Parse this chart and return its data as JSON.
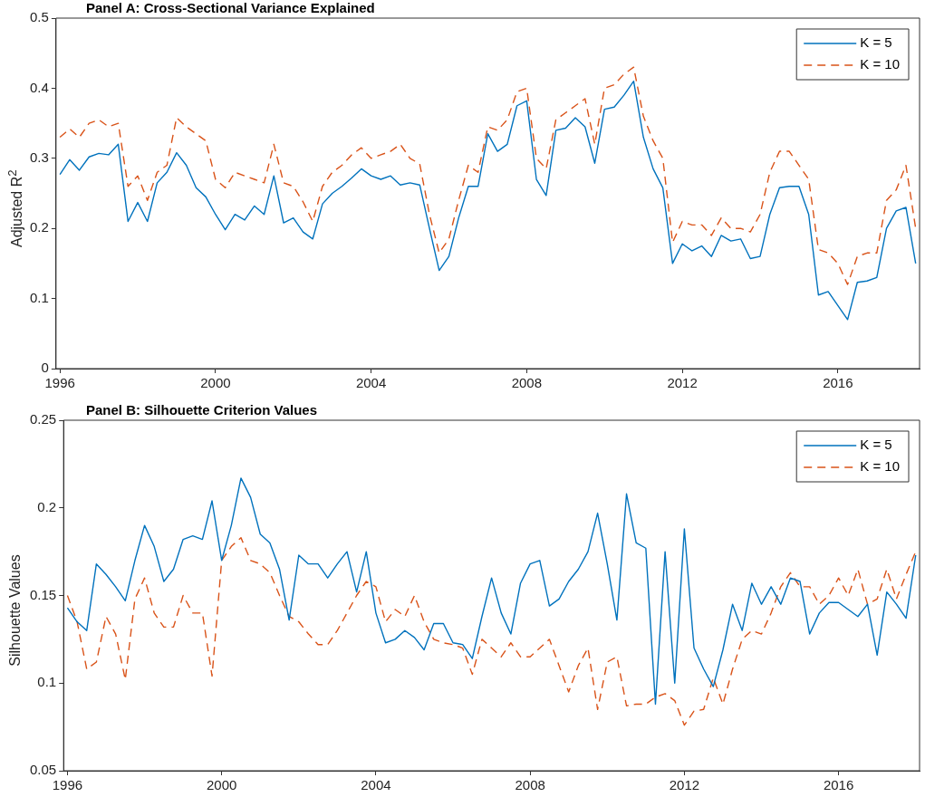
{
  "chart_data": [
    {
      "type": "line",
      "title": "Panel A: Cross-Sectional Variance Explained",
      "ylabel": "Adjusted R$^{2}$",
      "x": [
        1996,
        1996.25,
        1996.5,
        1996.75,
        1997,
        1997.25,
        1997.5,
        1997.75,
        1998,
        1998.25,
        1998.5,
        1998.75,
        1999,
        1999.25,
        1999.5,
        1999.75,
        2000,
        2000.25,
        2000.5,
        2000.75,
        2001,
        2001.25,
        2001.5,
        2001.75,
        2002,
        2002.25,
        2002.5,
        2002.75,
        2003,
        2003.25,
        2003.5,
        2003.75,
        2004,
        2004.25,
        2004.5,
        2004.75,
        2005,
        2005.25,
        2005.5,
        2005.75,
        2006,
        2006.25,
        2006.5,
        2006.75,
        2007,
        2007.25,
        2007.5,
        2007.75,
        2008,
        2008.25,
        2008.5,
        2008.75,
        2009,
        2009.25,
        2009.5,
        2009.75,
        2010,
        2010.25,
        2010.5,
        2010.75,
        2011,
        2011.25,
        2011.5,
        2011.75,
        2012,
        2012.25,
        2012.5,
        2012.75,
        2013,
        2013.25,
        2013.5,
        2013.75,
        2014,
        2014.25,
        2014.5,
        2014.75,
        2015,
        2015.25,
        2015.5,
        2015.75,
        2016,
        2016.25,
        2016.5,
        2016.75,
        2017,
        2017.25,
        2017.5,
        2017.75,
        2018
      ],
      "series": [
        {
          "name": "K = 5",
          "color": "#0072bd",
          "line_style": "solid",
          "values": [
            0.277,
            0.298,
            0.283,
            0.302,
            0.307,
            0.305,
            0.32,
            0.21,
            0.237,
            0.21,
            0.265,
            0.28,
            0.308,
            0.29,
            0.258,
            0.245,
            0.22,
            0.198,
            0.22,
            0.212,
            0.232,
            0.22,
            0.275,
            0.208,
            0.215,
            0.195,
            0.185,
            0.235,
            0.25,
            0.26,
            0.272,
            0.285,
            0.275,
            0.27,
            0.275,
            0.262,
            0.265,
            0.262,
            0.2,
            0.14,
            0.16,
            0.215,
            0.26,
            0.26,
            0.335,
            0.31,
            0.32,
            0.375,
            0.382,
            0.27,
            0.247,
            0.34,
            0.343,
            0.358,
            0.345,
            0.293,
            0.37,
            0.373,
            0.39,
            0.41,
            0.33,
            0.285,
            0.258,
            0.15,
            0.178,
            0.168,
            0.175,
            0.16,
            0.19,
            0.182,
            0.185,
            0.157,
            0.16,
            0.22,
            0.258,
            0.26,
            0.26,
            0.22,
            0.105,
            0.11,
            0.09,
            0.07,
            0.123,
            0.125,
            0.13,
            0.2,
            0.225,
            0.23,
            0.15
          ]
        },
        {
          "name": "K = 10",
          "color": "#d95319",
          "line_style": "dashed",
          "values": [
            0.33,
            0.342,
            0.33,
            0.35,
            0.355,
            0.345,
            0.35,
            0.26,
            0.275,
            0.24,
            0.28,
            0.29,
            0.358,
            0.345,
            0.335,
            0.325,
            0.27,
            0.258,
            0.28,
            0.275,
            0.27,
            0.265,
            0.32,
            0.265,
            0.26,
            0.238,
            0.21,
            0.26,
            0.28,
            0.29,
            0.305,
            0.315,
            0.3,
            0.305,
            0.31,
            0.32,
            0.3,
            0.292,
            0.22,
            0.165,
            0.185,
            0.24,
            0.29,
            0.28,
            0.345,
            0.34,
            0.355,
            0.395,
            0.4,
            0.3,
            0.285,
            0.355,
            0.365,
            0.375,
            0.385,
            0.32,
            0.4,
            0.405,
            0.42,
            0.43,
            0.36,
            0.325,
            0.3,
            0.18,
            0.21,
            0.205,
            0.205,
            0.19,
            0.215,
            0.2,
            0.2,
            0.195,
            0.22,
            0.28,
            0.31,
            0.31,
            0.29,
            0.27,
            0.17,
            0.165,
            0.15,
            0.12,
            0.16,
            0.165,
            0.165,
            0.24,
            0.255,
            0.29,
            0.2
          ]
        }
      ],
      "xlim": [
        1995.9,
        2018.1
      ],
      "xticks": [
        1996,
        2000,
        2004,
        2008,
        2012,
        2016
      ],
      "ylim": [
        0,
        0.5
      ],
      "yticks": [
        0,
        0.1,
        0.2,
        0.3,
        0.4,
        0.5
      ],
      "grid": false,
      "legend": "top right",
      "marker": "none"
    },
    {
      "type": "line",
      "title": "Panel B: Silhouette Criterion Values",
      "ylabel": "Silhouette Values",
      "x": [
        1996,
        1996.25,
        1996.5,
        1996.75,
        1997,
        1997.25,
        1997.5,
        1997.75,
        1998,
        1998.25,
        1998.5,
        1998.75,
        1999,
        1999.25,
        1999.5,
        1999.75,
        2000,
        2000.25,
        2000.5,
        2000.75,
        2001,
        2001.25,
        2001.5,
        2001.75,
        2002,
        2002.25,
        2002.5,
        2002.75,
        2003,
        2003.25,
        2003.5,
        2003.75,
        2004,
        2004.25,
        2004.5,
        2004.75,
        2005,
        2005.25,
        2005.5,
        2005.75,
        2006,
        2006.25,
        2006.5,
        2006.75,
        2007,
        2007.25,
        2007.5,
        2007.75,
        2008,
        2008.25,
        2008.5,
        2008.75,
        2009,
        2009.25,
        2009.5,
        2009.75,
        2010,
        2010.25,
        2010.5,
        2010.75,
        2011,
        2011.25,
        2011.5,
        2011.75,
        2012,
        2012.25,
        2012.5,
        2012.75,
        2013,
        2013.25,
        2013.5,
        2013.75,
        2014,
        2014.25,
        2014.5,
        2014.75,
        2015,
        2015.25,
        2015.5,
        2015.75,
        2016,
        2016.25,
        2016.5,
        2016.75,
        2017,
        2017.25,
        2017.5,
        2017.75,
        2018
      ],
      "series": [
        {
          "name": "K = 5",
          "color": "#0072bd",
          "line_style": "solid",
          "values": [
            0.143,
            0.135,
            0.13,
            0.168,
            0.162,
            0.155,
            0.147,
            0.17,
            0.19,
            0.178,
            0.158,
            0.165,
            0.182,
            0.184,
            0.182,
            0.204,
            0.17,
            0.19,
            0.217,
            0.206,
            0.185,
            0.18,
            0.165,
            0.136,
            0.173,
            0.168,
            0.168,
            0.16,
            0.168,
            0.175,
            0.152,
            0.175,
            0.14,
            0.123,
            0.125,
            0.13,
            0.126,
            0.119,
            0.134,
            0.134,
            0.123,
            0.122,
            0.114,
            0.138,
            0.16,
            0.14,
            0.128,
            0.157,
            0.168,
            0.17,
            0.144,
            0.148,
            0.158,
            0.165,
            0.175,
            0.197,
            0.168,
            0.136,
            0.208,
            0.18,
            0.177,
            0.088,
            0.175,
            0.1,
            0.188,
            0.12,
            0.108,
            0.098,
            0.119,
            0.145,
            0.13,
            0.157,
            0.145,
            0.155,
            0.145,
            0.16,
            0.158,
            0.128,
            0.14,
            0.146,
            0.146,
            0.142,
            0.138,
            0.145,
            0.116,
            0.152,
            0.145,
            0.137,
            0.173
          ]
        },
        {
          "name": "K = 10",
          "color": "#d95319",
          "line_style": "dashed",
          "values": [
            0.15,
            0.135,
            0.108,
            0.112,
            0.138,
            0.128,
            0.102,
            0.148,
            0.16,
            0.14,
            0.132,
            0.132,
            0.15,
            0.14,
            0.14,
            0.104,
            0.17,
            0.178,
            0.183,
            0.17,
            0.168,
            0.163,
            0.15,
            0.138,
            0.135,
            0.128,
            0.122,
            0.122,
            0.13,
            0.14,
            0.15,
            0.158,
            0.155,
            0.135,
            0.142,
            0.138,
            0.15,
            0.135,
            0.125,
            0.123,
            0.122,
            0.12,
            0.105,
            0.125,
            0.12,
            0.115,
            0.123,
            0.115,
            0.115,
            0.12,
            0.125,
            0.11,
            0.095,
            0.11,
            0.12,
            0.085,
            0.112,
            0.115,
            0.087,
            0.088,
            0.088,
            0.092,
            0.094,
            0.09,
            0.076,
            0.084,
            0.085,
            0.103,
            0.088,
            0.108,
            0.125,
            0.13,
            0.128,
            0.14,
            0.155,
            0.163,
            0.155,
            0.155,
            0.145,
            0.15,
            0.16,
            0.15,
            0.165,
            0.145,
            0.148,
            0.165,
            0.148,
            0.162,
            0.175
          ]
        }
      ],
      "xlim": [
        1995.9,
        2018.1
      ],
      "xticks": [
        1996,
        2000,
        2004,
        2008,
        2012,
        2016
      ],
      "ylim": [
        0.05,
        0.25
      ],
      "yticks": [
        0.05,
        0.1,
        0.15,
        0.2,
        0.25
      ],
      "grid": false,
      "legend": "top right",
      "marker": "none"
    }
  ]
}
